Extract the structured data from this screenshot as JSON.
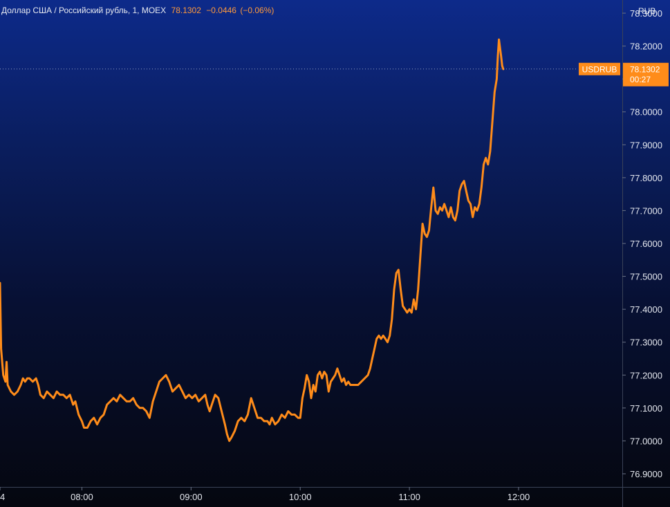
{
  "legend": {
    "symbol": "Доллар США / Российский рубль, 1, MOEX",
    "last": "78.1302",
    "change": "−0.0446",
    "change_pct": "(−0.06%)"
  },
  "chart_data": {
    "type": "line",
    "currency": "RUB",
    "ylim": [
      76.86,
      78.34
    ],
    "xlim": [
      7.25,
      12.95
    ],
    "y_ticks": [
      "78.3000",
      "78.2000",
      "78.1000",
      "78.0000",
      "77.9000",
      "77.8000",
      "77.7000",
      "77.6000",
      "77.5000",
      "77.4000",
      "77.3000",
      "77.2000",
      "77.1000",
      "77.0000",
      "76.9000"
    ],
    "x_ticks": [
      {
        "t": 7.25,
        "label": "4"
      },
      {
        "t": 8.0,
        "label": "08:00"
      },
      {
        "t": 9.0,
        "label": "09:00"
      },
      {
        "t": 10.0,
        "label": "10:00"
      },
      {
        "t": 11.0,
        "label": "11:00"
      },
      {
        "t": 12.0,
        "label": "12:00"
      }
    ],
    "series": [
      {
        "name": "USDRUB",
        "color": "#ff8c1a",
        "points": [
          [
            7.25,
            77.48
          ],
          [
            7.26,
            77.28
          ],
          [
            7.28,
            77.2
          ],
          [
            7.3,
            77.18
          ],
          [
            7.31,
            77.24
          ],
          [
            7.32,
            77.17
          ],
          [
            7.35,
            77.15
          ],
          [
            7.38,
            77.14
          ],
          [
            7.41,
            77.15
          ],
          [
            7.44,
            77.17
          ],
          [
            7.46,
            77.19
          ],
          [
            7.48,
            77.18
          ],
          [
            7.5,
            77.19
          ],
          [
            7.52,
            77.19
          ],
          [
            7.55,
            77.18
          ],
          [
            7.58,
            77.19
          ],
          [
            7.6,
            77.17
          ],
          [
            7.62,
            77.14
          ],
          [
            7.65,
            77.13
          ],
          [
            7.68,
            77.15
          ],
          [
            7.71,
            77.14
          ],
          [
            7.74,
            77.13
          ],
          [
            7.77,
            77.15
          ],
          [
            7.8,
            77.14
          ],
          [
            7.83,
            77.14
          ],
          [
            7.86,
            77.13
          ],
          [
            7.89,
            77.14
          ],
          [
            7.92,
            77.11
          ],
          [
            7.94,
            77.12
          ],
          [
            7.97,
            77.08
          ],
          [
            8.0,
            77.06
          ],
          [
            8.02,
            77.04
          ],
          [
            8.05,
            77.04
          ],
          [
            8.08,
            77.06
          ],
          [
            8.11,
            77.07
          ],
          [
            8.14,
            77.05
          ],
          [
            8.17,
            77.07
          ],
          [
            8.2,
            77.08
          ],
          [
            8.23,
            77.11
          ],
          [
            8.26,
            77.12
          ],
          [
            8.29,
            77.13
          ],
          [
            8.32,
            77.12
          ],
          [
            8.35,
            77.14
          ],
          [
            8.38,
            77.13
          ],
          [
            8.41,
            77.12
          ],
          [
            8.44,
            77.12
          ],
          [
            8.47,
            77.13
          ],
          [
            8.5,
            77.11
          ],
          [
            8.53,
            77.1
          ],
          [
            8.56,
            77.1
          ],
          [
            8.59,
            77.09
          ],
          [
            8.62,
            77.07
          ],
          [
            8.65,
            77.12
          ],
          [
            8.68,
            77.15
          ],
          [
            8.71,
            77.18
          ],
          [
            8.74,
            77.19
          ],
          [
            8.77,
            77.2
          ],
          [
            8.8,
            77.18
          ],
          [
            8.83,
            77.15
          ],
          [
            8.86,
            77.16
          ],
          [
            8.89,
            77.17
          ],
          [
            8.92,
            77.15
          ],
          [
            8.95,
            77.13
          ],
          [
            8.98,
            77.14
          ],
          [
            9.01,
            77.13
          ],
          [
            9.04,
            77.14
          ],
          [
            9.07,
            77.12
          ],
          [
            9.1,
            77.13
          ],
          [
            9.13,
            77.14
          ],
          [
            9.15,
            77.11
          ],
          [
            9.17,
            77.09
          ],
          [
            9.19,
            77.11
          ],
          [
            9.22,
            77.14
          ],
          [
            9.25,
            77.13
          ],
          [
            9.28,
            77.09
          ],
          [
            9.31,
            77.05
          ],
          [
            9.33,
            77.02
          ],
          [
            9.35,
            77.0
          ],
          [
            9.37,
            77.01
          ],
          [
            9.4,
            77.03
          ],
          [
            9.43,
            77.06
          ],
          [
            9.46,
            77.07
          ],
          [
            9.49,
            77.06
          ],
          [
            9.52,
            77.08
          ],
          [
            9.55,
            77.13
          ],
          [
            9.58,
            77.1
          ],
          [
            9.61,
            77.07
          ],
          [
            9.64,
            77.07
          ],
          [
            9.67,
            77.06
          ],
          [
            9.7,
            77.06
          ],
          [
            9.72,
            77.05
          ],
          [
            9.74,
            77.07
          ],
          [
            9.77,
            77.05
          ],
          [
            9.8,
            77.06
          ],
          [
            9.83,
            77.08
          ],
          [
            9.86,
            77.07
          ],
          [
            9.89,
            77.09
          ],
          [
            9.92,
            77.08
          ],
          [
            9.95,
            77.08
          ],
          [
            9.98,
            77.07
          ],
          [
            10.0,
            77.07
          ],
          [
            10.02,
            77.13
          ],
          [
            10.04,
            77.16
          ],
          [
            10.06,
            77.2
          ],
          [
            10.08,
            77.18
          ],
          [
            10.1,
            77.13
          ],
          [
            10.12,
            77.17
          ],
          [
            10.14,
            77.15
          ],
          [
            10.16,
            77.2
          ],
          [
            10.18,
            77.21
          ],
          [
            10.2,
            77.19
          ],
          [
            10.22,
            77.21
          ],
          [
            10.24,
            77.2
          ],
          [
            10.26,
            77.15
          ],
          [
            10.28,
            77.18
          ],
          [
            10.3,
            77.19
          ],
          [
            10.32,
            77.2
          ],
          [
            10.34,
            77.22
          ],
          [
            10.36,
            77.2
          ],
          [
            10.38,
            77.18
          ],
          [
            10.4,
            77.19
          ],
          [
            10.42,
            77.17
          ],
          [
            10.44,
            77.18
          ],
          [
            10.46,
            77.17
          ],
          [
            10.48,
            77.17
          ],
          [
            10.5,
            77.17
          ],
          [
            10.53,
            77.17
          ],
          [
            10.56,
            77.18
          ],
          [
            10.59,
            77.19
          ],
          [
            10.62,
            77.2
          ],
          [
            10.64,
            77.22
          ],
          [
            10.66,
            77.25
          ],
          [
            10.68,
            77.28
          ],
          [
            10.7,
            77.31
          ],
          [
            10.72,
            77.32
          ],
          [
            10.74,
            77.31
          ],
          [
            10.76,
            77.32
          ],
          [
            10.78,
            77.31
          ],
          [
            10.8,
            77.3
          ],
          [
            10.82,
            77.32
          ],
          [
            10.84,
            77.37
          ],
          [
            10.86,
            77.46
          ],
          [
            10.88,
            77.51
          ],
          [
            10.9,
            77.52
          ],
          [
            10.92,
            77.46
          ],
          [
            10.94,
            77.41
          ],
          [
            10.96,
            77.4
          ],
          [
            10.98,
            77.39
          ],
          [
            11.0,
            77.4
          ],
          [
            11.02,
            77.39
          ],
          [
            11.04,
            77.43
          ],
          [
            11.06,
            77.4
          ],
          [
            11.08,
            77.46
          ],
          [
            11.1,
            77.56
          ],
          [
            11.12,
            77.66
          ],
          [
            11.14,
            77.63
          ],
          [
            11.16,
            77.62
          ],
          [
            11.18,
            77.64
          ],
          [
            11.2,
            77.71
          ],
          [
            11.22,
            77.77
          ],
          [
            11.24,
            77.7
          ],
          [
            11.26,
            77.69
          ],
          [
            11.28,
            77.71
          ],
          [
            11.3,
            77.7
          ],
          [
            11.32,
            77.72
          ],
          [
            11.34,
            77.7
          ],
          [
            11.36,
            77.68
          ],
          [
            11.38,
            77.71
          ],
          [
            11.4,
            77.68
          ],
          [
            11.42,
            77.67
          ],
          [
            11.44,
            77.7
          ],
          [
            11.46,
            77.76
          ],
          [
            11.48,
            77.78
          ],
          [
            11.5,
            77.79
          ],
          [
            11.52,
            77.76
          ],
          [
            11.54,
            77.73
          ],
          [
            11.56,
            77.72
          ],
          [
            11.58,
            77.68
          ],
          [
            11.6,
            77.71
          ],
          [
            11.62,
            77.7
          ],
          [
            11.64,
            77.72
          ],
          [
            11.66,
            77.77
          ],
          [
            11.68,
            77.84
          ],
          [
            11.7,
            77.86
          ],
          [
            11.72,
            77.84
          ],
          [
            11.74,
            77.88
          ],
          [
            11.76,
            77.97
          ],
          [
            11.78,
            78.06
          ],
          [
            11.8,
            78.1
          ],
          [
            11.81,
            78.17
          ],
          [
            11.82,
            78.22
          ],
          [
            11.84,
            78.17
          ],
          [
            11.85,
            78.14
          ],
          [
            11.86,
            78.13
          ]
        ]
      }
    ],
    "last_label": {
      "name": "USDRUB",
      "price": "78.1302",
      "time": "00:27"
    }
  },
  "colors": {
    "line": "#ff8c1a",
    "badge": "#ff8c1a",
    "text": "#e6e9f0"
  }
}
